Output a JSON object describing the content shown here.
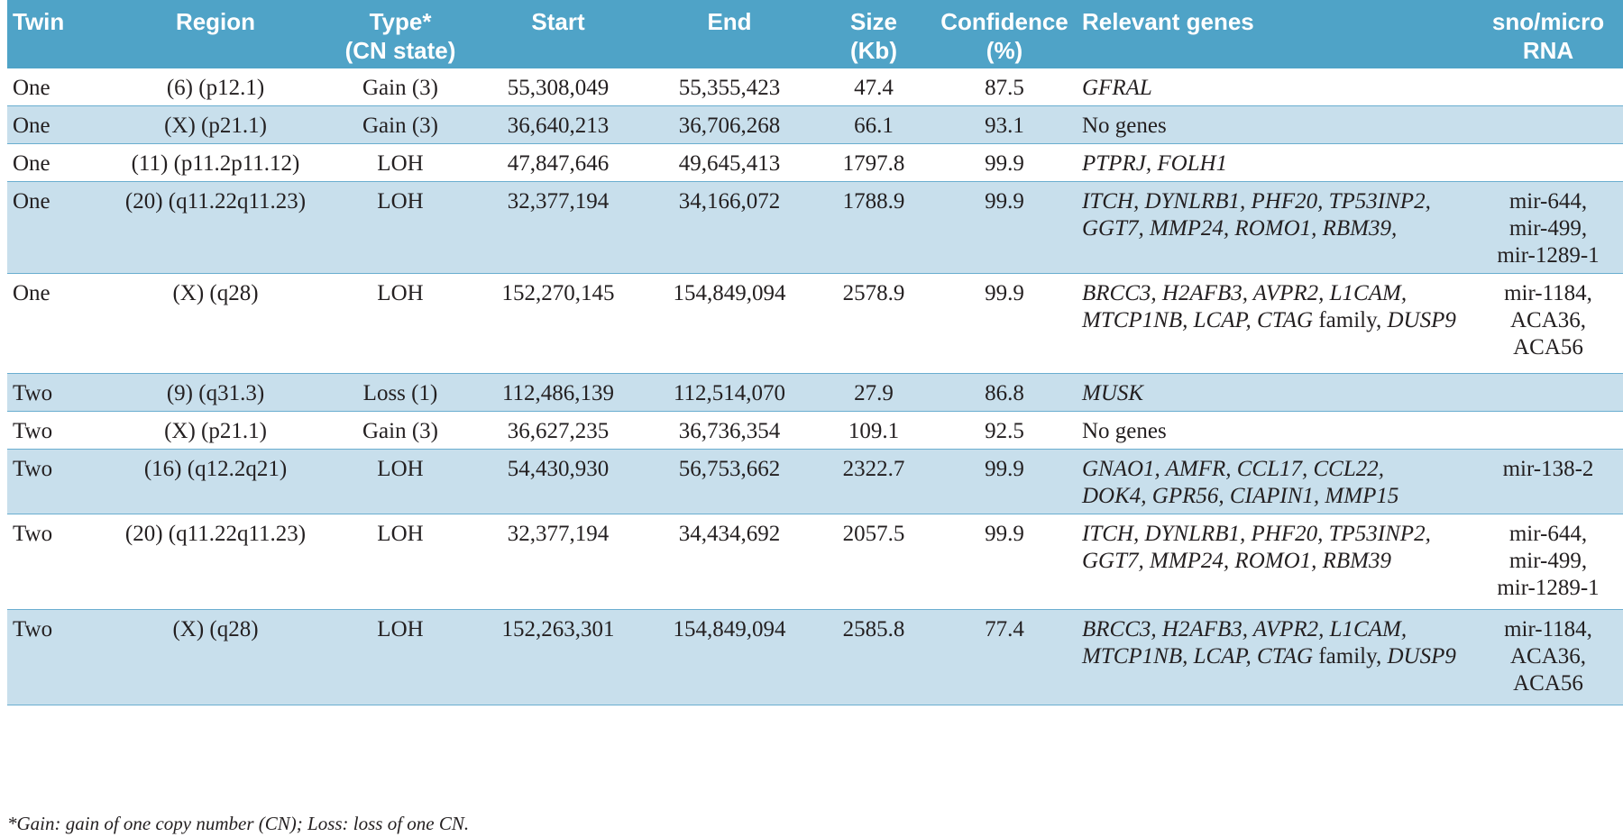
{
  "table": {
    "headers": {
      "twin": "Twin",
      "region": "Region",
      "type_l1": "Type*",
      "type_l2": "(CN state)",
      "start": "Start",
      "end": "End",
      "size_l1": "Size",
      "size_l2": "(Kb)",
      "conf_l1": "Confidence",
      "conf_l2": "(%)",
      "genes": "Relevant genes",
      "rna_l1": "sno/micro",
      "rna_l2": "RNA"
    },
    "rows": [
      {
        "twin": "One",
        "region": "(6) (p12.1)",
        "type": "Gain (3)",
        "start": "55,308,049",
        "end": "55,355,423",
        "size": "47.4",
        "confidence": "87.5",
        "genes_l1": "GFRAL",
        "rna_l1": "",
        "rna_l2": "",
        "rna_l3": ""
      },
      {
        "twin": "One",
        "region": "(X) (p21.1)",
        "type": "Gain (3)",
        "start": "36,640,213",
        "end": "36,706,268",
        "size": "66.1",
        "confidence": "93.1",
        "genes_plain": "No genes",
        "rna_l1": "",
        "rna_l2": "",
        "rna_l3": ""
      },
      {
        "twin": "One",
        "region": "(11) (p11.2p11.12)",
        "type": "LOH",
        "start": "47,847,646",
        "end": "49,645,413",
        "size": "1797.8",
        "confidence": "99.9",
        "genes_l1": "PTPRJ, FOLH1",
        "rna_l1": "",
        "rna_l2": "",
        "rna_l3": ""
      },
      {
        "twin": "One",
        "region": "(20) (q11.22q11.23)",
        "type": "LOH",
        "start": "32,377,194",
        "end": "34,166,072",
        "size": "1788.9",
        "confidence": "99.9",
        "genes_l1": "ITCH, DYNLRB1, PHF20, TP53INP2,",
        "genes_l2": "GGT7, MMP24, ROMO1, RBM39,",
        "rna_l1": "mir-644,",
        "rna_l2": "mir-499,",
        "rna_l3": "mir-1289-1"
      },
      {
        "twin": "One",
        "region": "(X) (q28)",
        "type": "LOH",
        "start": "152,270,145",
        "end": "154,849,094",
        "size": "2578.9",
        "confidence": "99.9",
        "genes_l1": "BRCC3, H2AFB3, AVPR2, L1CAM,",
        "genes_l2a": "MTCP1NB, LCAP, CTAG",
        "genes_l2b": " family, ",
        "genes_l2c": "DUSP9",
        "rna_l1": "mir-1184,",
        "rna_l2": "ACA36,",
        "rna_l3": "ACA56"
      },
      {
        "twin": "Two",
        "region": "(9) (q31.3)",
        "type": "Loss (1)",
        "start": "112,486,139",
        "end": "112,514,070",
        "size": "27.9",
        "confidence": "86.8",
        "genes_l1": "MUSK",
        "rna_l1": "",
        "rna_l2": "",
        "rna_l3": ""
      },
      {
        "twin": "Two",
        "region": "(X) (p21.1)",
        "type": "Gain (3)",
        "start": "36,627,235",
        "end": "36,736,354",
        "size": "109.1",
        "confidence": "92.5",
        "genes_plain": "No genes",
        "rna_l1": "",
        "rna_l2": "",
        "rna_l3": ""
      },
      {
        "twin": "Two",
        "region": "(16) (q12.2q21)",
        "type": "LOH",
        "start": "54,430,930",
        "end": "56,753,662",
        "size": "2322.7",
        "confidence": "99.9",
        "genes_l1": "GNAO1, AMFR, CCL17, CCL22,",
        "genes_l2": "DOK4, GPR56, CIAPIN1, MMP15",
        "rna_l1": "mir-138-2",
        "rna_l2": "",
        "rna_l3": ""
      },
      {
        "twin": "Two",
        "region": "(20) (q11.22q11.23)",
        "type": "LOH",
        "start": "32,377,194",
        "end": "34,434,692",
        "size": "2057.5",
        "confidence": "99.9",
        "genes_l1": "ITCH, DYNLRB1, PHF20, TP53INP2,",
        "genes_l2": "GGT7, MMP24, ROMO1, RBM39",
        "rna_l1": "mir-644,",
        "rna_l2": "mir-499,",
        "rna_l3": "mir-1289-1"
      },
      {
        "twin": "Two",
        "region": "(X) (q28)",
        "type": "LOH",
        "start": "152,263,301",
        "end": "154,849,094",
        "size": "2585.8",
        "confidence": "77.4",
        "genes_l1": "BRCC3, H2AFB3, AVPR2, L1CAM,",
        "genes_l2a": "MTCP1NB, LCAP, CTAG",
        "genes_l2b": " family, ",
        "genes_l2c": "DUSP9",
        "rna_l1": "mir-1184,",
        "rna_l2": "ACA36,",
        "rna_l3": "ACA56"
      }
    ]
  },
  "footnote": "*Gain: gain of one copy number (CN); Loss: loss of one CN."
}
